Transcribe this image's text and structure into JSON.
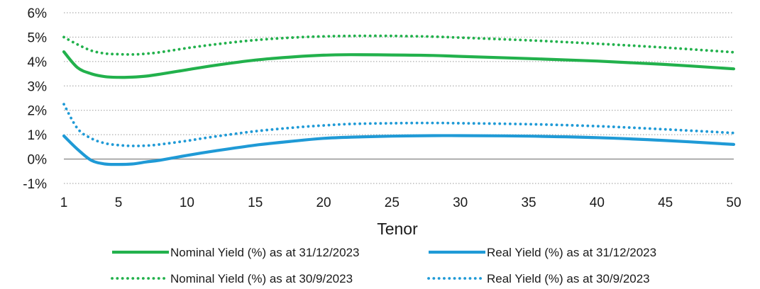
{
  "chart_data": {
    "type": "line",
    "title": "",
    "xlabel": "Tenor",
    "ylabel": "",
    "xlim": [
      1,
      50
    ],
    "ylim": [
      -1,
      6
    ],
    "x_ticks": [
      1,
      5,
      10,
      15,
      20,
      25,
      30,
      35,
      40,
      45,
      50
    ],
    "x_tick_labels": [
      "1",
      "5",
      "10",
      "15",
      "20",
      "25",
      "30",
      "35",
      "40",
      "45",
      "50"
    ],
    "y_ticks": [
      -1,
      0,
      1,
      2,
      3,
      4,
      5,
      6
    ],
    "y_tick_labels": [
      "-1%",
      "0%",
      "1%",
      "2%",
      "3%",
      "4%",
      "5%",
      "6%"
    ],
    "grid": "horizontal dotted",
    "legend_position": "bottom",
    "x": [
      1,
      2,
      3,
      4,
      5,
      6,
      7,
      8,
      10,
      12,
      15,
      18,
      20,
      22,
      25,
      28,
      30,
      35,
      40,
      45,
      50
    ],
    "series": [
      {
        "name": "Nominal Yield (%) as at 31/12/2023",
        "color": "#22b14c",
        "style": "solid",
        "values": [
          4.4,
          3.75,
          3.5,
          3.38,
          3.35,
          3.36,
          3.4,
          3.48,
          3.66,
          3.84,
          4.06,
          4.2,
          4.26,
          4.28,
          4.27,
          4.25,
          4.21,
          4.12,
          4.02,
          3.88,
          3.7
        ]
      },
      {
        "name": "Real Yield (%) as at 31/12/2023",
        "color": "#1f9ad6",
        "style": "solid",
        "values": [
          0.95,
          0.4,
          -0.05,
          -0.2,
          -0.22,
          -0.2,
          -0.12,
          -0.05,
          0.15,
          0.33,
          0.57,
          0.75,
          0.85,
          0.9,
          0.94,
          0.96,
          0.96,
          0.94,
          0.88,
          0.76,
          0.6
        ]
      },
      {
        "name": "Nominal Yield (%) as at 30/9/2023",
        "color": "#22b14c",
        "style": "dotted",
        "values": [
          5.0,
          4.7,
          4.45,
          4.33,
          4.3,
          4.29,
          4.32,
          4.38,
          4.55,
          4.7,
          4.88,
          4.99,
          5.03,
          5.05,
          5.05,
          5.02,
          4.98,
          4.87,
          4.73,
          4.57,
          4.38
        ]
      },
      {
        "name": "Real Yield (%) as at 30/9/2023",
        "color": "#1f9ad6",
        "style": "dotted",
        "values": [
          2.25,
          1.25,
          0.85,
          0.65,
          0.57,
          0.54,
          0.55,
          0.6,
          0.75,
          0.92,
          1.14,
          1.3,
          1.38,
          1.44,
          1.47,
          1.48,
          1.47,
          1.43,
          1.35,
          1.22,
          1.07
        ]
      }
    ]
  }
}
